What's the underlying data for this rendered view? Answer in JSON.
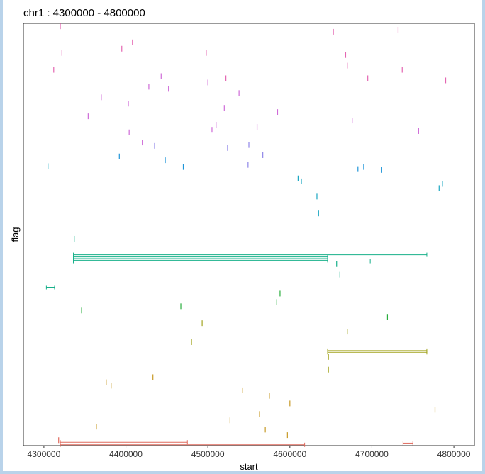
{
  "chart_data": {
    "type": "scatter",
    "title": "chr1 : 4300000 - 4800000",
    "xlabel": "start",
    "ylabel": "flag",
    "xlim": [
      4275000,
      4825000
    ],
    "ylim": [
      0,
      1
    ],
    "xticks": [
      4300000,
      4400000,
      4500000,
      4600000,
      4700000,
      4800000
    ],
    "xtick_labels": [
      "4300000",
      "4400000",
      "4500000",
      "4600000",
      "4700000",
      "4800000"
    ],
    "grid": false,
    "legend": "none",
    "colors": [
      "#e06a5d",
      "#c79a26",
      "#a2a41f",
      "#2aae3e",
      "#17b08a",
      "#1aa7c2",
      "#1f95d8",
      "#8f86e8",
      "#cf6ad8",
      "#e466b2"
    ],
    "marks": [
      {
        "x": 4320000,
        "y": 0.993,
        "c": 9
      },
      {
        "x": 4322000,
        "y": 0.93,
        "c": 9
      },
      {
        "x": 4312000,
        "y": 0.89,
        "c": 9
      },
      {
        "x": 4370000,
        "y": 0.825,
        "c": 8
      },
      {
        "x": 4354000,
        "y": 0.78,
        "c": 8
      },
      {
        "x": 4403000,
        "y": 0.81,
        "c": 8
      },
      {
        "x": 4395000,
        "y": 0.94,
        "c": 9
      },
      {
        "x": 4408000,
        "y": 0.955,
        "c": 9
      },
      {
        "x": 4428000,
        "y": 0.85,
        "c": 8
      },
      {
        "x": 4443000,
        "y": 0.875,
        "c": 8
      },
      {
        "x": 4452000,
        "y": 0.845,
        "c": 8
      },
      {
        "x": 4498000,
        "y": 0.93,
        "c": 9
      },
      {
        "x": 4500000,
        "y": 0.86,
        "c": 8
      },
      {
        "x": 4538000,
        "y": 0.835,
        "c": 8
      },
      {
        "x": 4520000,
        "y": 0.8,
        "c": 8
      },
      {
        "x": 4585000,
        "y": 0.79,
        "c": 8
      },
      {
        "x": 4522000,
        "y": 0.87,
        "c": 9
      },
      {
        "x": 4653000,
        "y": 0.98,
        "c": 9
      },
      {
        "x": 4668000,
        "y": 0.925,
        "c": 9
      },
      {
        "x": 4670000,
        "y": 0.9,
        "c": 9
      },
      {
        "x": 4732000,
        "y": 0.985,
        "c": 9
      },
      {
        "x": 4737000,
        "y": 0.89,
        "c": 9
      },
      {
        "x": 4790000,
        "y": 0.865,
        "c": 9
      },
      {
        "x": 4695000,
        "y": 0.87,
        "c": 9
      },
      {
        "x": 4676000,
        "y": 0.77,
        "c": 8
      },
      {
        "x": 4757000,
        "y": 0.745,
        "c": 8
      },
      {
        "x": 4560000,
        "y": 0.755,
        "c": 8
      },
      {
        "x": 4505000,
        "y": 0.748,
        "c": 8
      },
      {
        "x": 4510000,
        "y": 0.76,
        "c": 8
      },
      {
        "x": 4524000,
        "y": 0.705,
        "c": 7
      },
      {
        "x": 4550000,
        "y": 0.712,
        "c": 7
      },
      {
        "x": 4567000,
        "y": 0.688,
        "c": 7
      },
      {
        "x": 4549000,
        "y": 0.665,
        "c": 7
      },
      {
        "x": 4435000,
        "y": 0.71,
        "c": 7
      },
      {
        "x": 4420000,
        "y": 0.718,
        "c": 8
      },
      {
        "x": 4404000,
        "y": 0.742,
        "c": 8
      },
      {
        "x": 4392000,
        "y": 0.685,
        "c": 6
      },
      {
        "x": 4448000,
        "y": 0.676,
        "c": 6
      },
      {
        "x": 4470000,
        "y": 0.66,
        "c": 6
      },
      {
        "x": 4305000,
        "y": 0.662,
        "c": 5
      },
      {
        "x": 4683000,
        "y": 0.655,
        "c": 6
      },
      {
        "x": 4690000,
        "y": 0.66,
        "c": 6
      },
      {
        "x": 4712000,
        "y": 0.653,
        "c": 6
      },
      {
        "x": 4610000,
        "y": 0.633,
        "c": 5
      },
      {
        "x": 4614000,
        "y": 0.626,
        "c": 5
      },
      {
        "x": 4633000,
        "y": 0.59,
        "c": 5
      },
      {
        "x": 4635000,
        "y": 0.55,
        "c": 5
      },
      {
        "x": 4782000,
        "y": 0.61,
        "c": 5
      },
      {
        "x": 4786000,
        "y": 0.62,
        "c": 5
      },
      {
        "x": 4657000,
        "y": 0.43,
        "c": 4
      },
      {
        "x": 4661000,
        "y": 0.405,
        "c": 4
      },
      {
        "x": 4588000,
        "y": 0.36,
        "c": 3
      },
      {
        "x": 4584000,
        "y": 0.34,
        "c": 3
      },
      {
        "x": 4346000,
        "y": 0.32,
        "c": 3
      },
      {
        "x": 4467000,
        "y": 0.33,
        "c": 3
      },
      {
        "x": 4719000,
        "y": 0.305,
        "c": 3
      },
      {
        "x": 4493000,
        "y": 0.29,
        "c": 2
      },
      {
        "x": 4480000,
        "y": 0.245,
        "c": 2
      },
      {
        "x": 4670000,
        "y": 0.27,
        "c": 2
      },
      {
        "x": 4433000,
        "y": 0.162,
        "c": 1
      },
      {
        "x": 4376000,
        "y": 0.15,
        "c": 1
      },
      {
        "x": 4382000,
        "y": 0.142,
        "c": 1
      },
      {
        "x": 4542000,
        "y": 0.131,
        "c": 1
      },
      {
        "x": 4575000,
        "y": 0.118,
        "c": 1
      },
      {
        "x": 4777000,
        "y": 0.085,
        "c": 1
      },
      {
        "x": 4364000,
        "y": 0.045,
        "c": 1
      },
      {
        "x": 4527000,
        "y": 0.06,
        "c": 1
      },
      {
        "x": 4563000,
        "y": 0.075,
        "c": 1
      },
      {
        "x": 4570000,
        "y": 0.038,
        "c": 1
      },
      {
        "x": 4597000,
        "y": 0.025,
        "c": 1
      },
      {
        "x": 4600000,
        "y": 0.1,
        "c": 1
      },
      {
        "x": 4647000,
        "y": 0.18,
        "c": 2
      },
      {
        "x": 4647000,
        "y": 0.21,
        "c": 2
      },
      {
        "x": 4318000,
        "y": 0.013,
        "c": 0
      },
      {
        "x": 4337000,
        "y": 0.49,
        "c": 4
      }
    ],
    "segments": [
      {
        "x1": 4336000,
        "x2": 4767000,
        "y": 0.452,
        "c": 4
      },
      {
        "x1": 4336000,
        "x2": 4646000,
        "y": 0.447,
        "c": 4
      },
      {
        "x1": 4336000,
        "x2": 4646000,
        "y": 0.443,
        "c": 4
      },
      {
        "x1": 4336000,
        "x2": 4646000,
        "y": 0.439,
        "c": 4
      },
      {
        "x1": 4336000,
        "x2": 4698000,
        "y": 0.437,
        "c": 4
      },
      {
        "x1": 4303000,
        "x2": 4313000,
        "y": 0.375,
        "c": 4
      },
      {
        "x1": 4646000,
        "x2": 4767000,
        "y": 0.225,
        "c": 2
      },
      {
        "x1": 4646000,
        "x2": 4767000,
        "y": 0.221,
        "c": 2
      },
      {
        "x1": 4320000,
        "x2": 4475000,
        "y": 0.008,
        "c": 0
      },
      {
        "x1": 4320000,
        "x2": 4618000,
        "y": 0.002,
        "c": 0
      },
      {
        "x1": 4738000,
        "x2": 4750000,
        "y": 0.006,
        "c": 0
      }
    ]
  }
}
